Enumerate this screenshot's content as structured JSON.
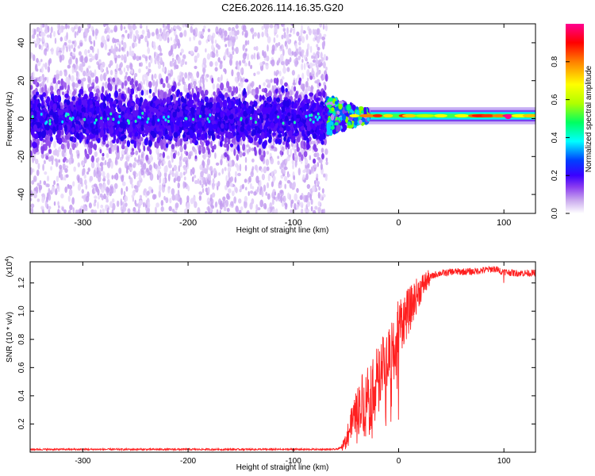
{
  "title": "C2E6.2026.114.16.35.G20",
  "chart_data": [
    {
      "type": "heatmap",
      "xlabel": "Height of straight line (km)",
      "ylabel": "Frequency (Hz)",
      "xlim": [
        -350,
        130
      ],
      "ylim": [
        -50,
        50
      ],
      "xticks": [
        -300,
        -200,
        -100,
        0,
        100
      ],
      "xtick_labels": [
        "-300",
        "-200",
        "-100",
        "0",
        "100"
      ],
      "yticks": [
        -40,
        -20,
        0,
        20,
        40
      ],
      "ytick_labels": [
        "-40",
        "-20",
        "0",
        "20",
        "40"
      ],
      "noise_region_x": [
        -350,
        -68
      ],
      "signal_region_x": [
        -68,
        130
      ],
      "noise_band_halfwidth_hz": 10,
      "signal_center_hz": 1.5,
      "colorbar": {
        "label": "Normalized spectral amplitude",
        "range": [
          0,
          1
        ],
        "ticks": [
          0.0,
          0.2,
          0.4,
          0.6,
          0.8
        ],
        "tick_labels": [
          "0.0",
          "0.2",
          "0.4",
          "0.6",
          "0.8"
        ],
        "colors": [
          "#ffffff",
          "#c9a8ee",
          "#8a3cf0",
          "#3a00ff",
          "#0040ff",
          "#00ffff",
          "#00ff60",
          "#b0ff00",
          "#ffff00",
          "#ff8000",
          "#ff0000",
          "#ff0090"
        ]
      }
    },
    {
      "type": "line",
      "xlabel": "Height of straight line (km)",
      "ylabel": "SNR (10 * v/v)",
      "y_multiplier_label": "(x10",
      "y_multiplier_exp": "4",
      "y_multiplier_close": ")",
      "xlim": [
        -350,
        130
      ],
      "ylim": [
        0,
        1.35
      ],
      "xticks": [
        -300,
        -200,
        -100,
        0,
        100
      ],
      "xtick_labels": [
        "-300",
        "-200",
        "-100",
        "0",
        "100"
      ],
      "yticks": [
        0.2,
        0.4,
        0.6,
        0.8,
        1.0,
        1.2
      ],
      "ytick_labels": [
        "0.2",
        "0.4",
        "0.6",
        "0.8",
        "1.0",
        "1.2"
      ],
      "series": [
        {
          "name": "SNR",
          "color": "#ff2020",
          "x": [
            -350,
            -300,
            -250,
            -200,
            -150,
            -100,
            -60,
            -55,
            -50,
            -45,
            -40,
            -35,
            -30,
            -25,
            -20,
            -15,
            -10,
            -5,
            0,
            5,
            10,
            15,
            20,
            25,
            30,
            35,
            40,
            45,
            50,
            60,
            70,
            80,
            90,
            100,
            110,
            120,
            130
          ],
          "y": [
            0.02,
            0.02,
            0.02,
            0.02,
            0.02,
            0.02,
            0.02,
            0.03,
            0.1,
            0.2,
            0.28,
            0.35,
            0.42,
            0.48,
            0.55,
            0.6,
            0.68,
            0.78,
            0.9,
            0.95,
            1.0,
            1.08,
            1.15,
            1.2,
            1.24,
            1.26,
            1.27,
            1.27,
            1.28,
            1.28,
            1.28,
            1.29,
            1.3,
            1.28,
            1.27,
            1.27,
            1.27
          ]
        }
      ]
    }
  ]
}
